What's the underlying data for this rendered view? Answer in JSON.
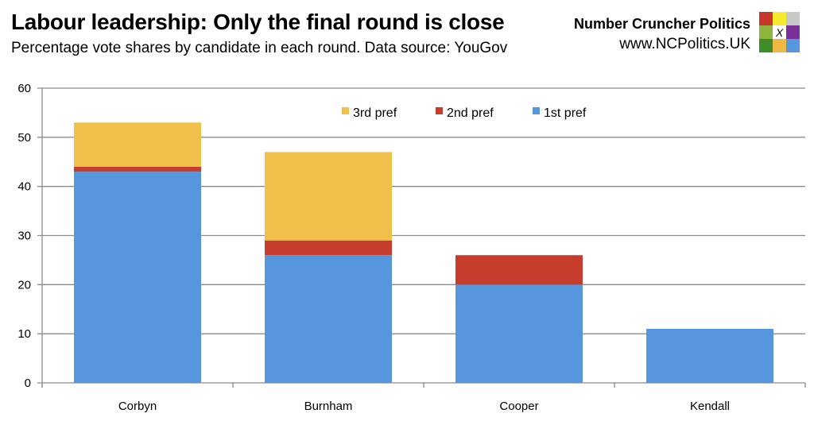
{
  "header": {
    "title": "Labour leadership: Only the final round is close",
    "subtitle": "Percentage vote shares by candidate in each round. Data source: YouGov"
  },
  "brand": {
    "name": "Number Cruncher Politics",
    "url": "www.NCPolitics.UK",
    "logo_mark": "X",
    "logo_colors": [
      "#c9372c",
      "#f7ea2b",
      "#c8c8c8",
      "#8db63e",
      "#ffffff",
      "#7b2f97",
      "#3f8d2a",
      "#f0b843",
      "#5598dd"
    ]
  },
  "chart_data": {
    "type": "bar",
    "stacked": true,
    "title": "Labour leadership: Only the final round is close",
    "subtitle": "Percentage vote shares by candidate in each round. Data source: YouGov",
    "xlabel": "",
    "ylabel": "",
    "categories": [
      "Corbyn",
      "Burnham",
      "Cooper",
      "Kendall"
    ],
    "series": [
      {
        "name": "1st pref",
        "color": "#5596dc",
        "values": [
          43,
          26,
          20,
          11
        ]
      },
      {
        "name": "2nd pref",
        "color": "#c63d2d",
        "values": [
          1,
          3,
          6,
          0
        ]
      },
      {
        "name": "3rd pref",
        "color": "#f0c04a",
        "values": [
          9,
          18,
          0,
          0
        ]
      }
    ],
    "ylim": [
      0,
      60
    ],
    "yticks": [
      0,
      10,
      20,
      30,
      40,
      50,
      60
    ],
    "grid": true,
    "legend": {
      "position": "top-inside",
      "order": [
        "3rd pref",
        "2nd pref",
        "1st pref"
      ]
    }
  }
}
